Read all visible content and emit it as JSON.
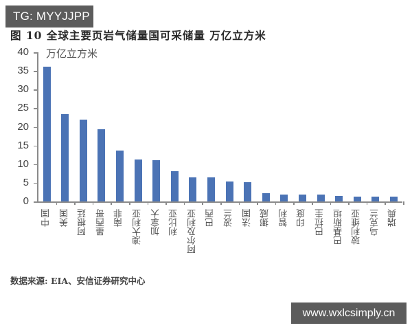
{
  "watermarks": {
    "top_left": "TG: MYYJJPP",
    "bottom_right": "www.wxlcsimply.cn"
  },
  "figure": {
    "title": "图 10 全球主要页岩气储量国可采储量 万亿立方米",
    "unit_label": "万亿立方米",
    "source": "数据来源: EIA、安信证券研究中心"
  },
  "colors": {
    "bar": "#4b73b5",
    "axis": "#8a8a8a"
  },
  "chart_data": {
    "type": "bar",
    "title": "图 10 全球主要页岩气储量国可采储量 万亿立方米",
    "xlabel": "",
    "ylabel": "万亿立方米",
    "ylim": [
      0,
      40
    ],
    "yticks": [
      0,
      5,
      10,
      15,
      20,
      25,
      30,
      35,
      40
    ],
    "grid": false,
    "legend": null,
    "categories": [
      "中国",
      "美国",
      "阿根廷",
      "墨西哥",
      "南非",
      "澳大利亚",
      "加拿大",
      "利比亚",
      "阿尔及利亚",
      "巴西",
      "波兰",
      "法国",
      "挪威",
      "智利",
      "印度",
      "巴拉圭",
      "巴基斯坦",
      "玻利维亚",
      "乌克兰",
      "瑞典"
    ],
    "values": [
      36.1,
      23.4,
      21.9,
      19.3,
      13.7,
      11.2,
      11.0,
      8.2,
      6.5,
      6.4,
      5.3,
      5.1,
      2.3,
      1.8,
      1.8,
      1.8,
      1.4,
      1.3,
      1.2,
      1.2
    ],
    "source": "数据来源: EIA、安信证券研究中心"
  }
}
